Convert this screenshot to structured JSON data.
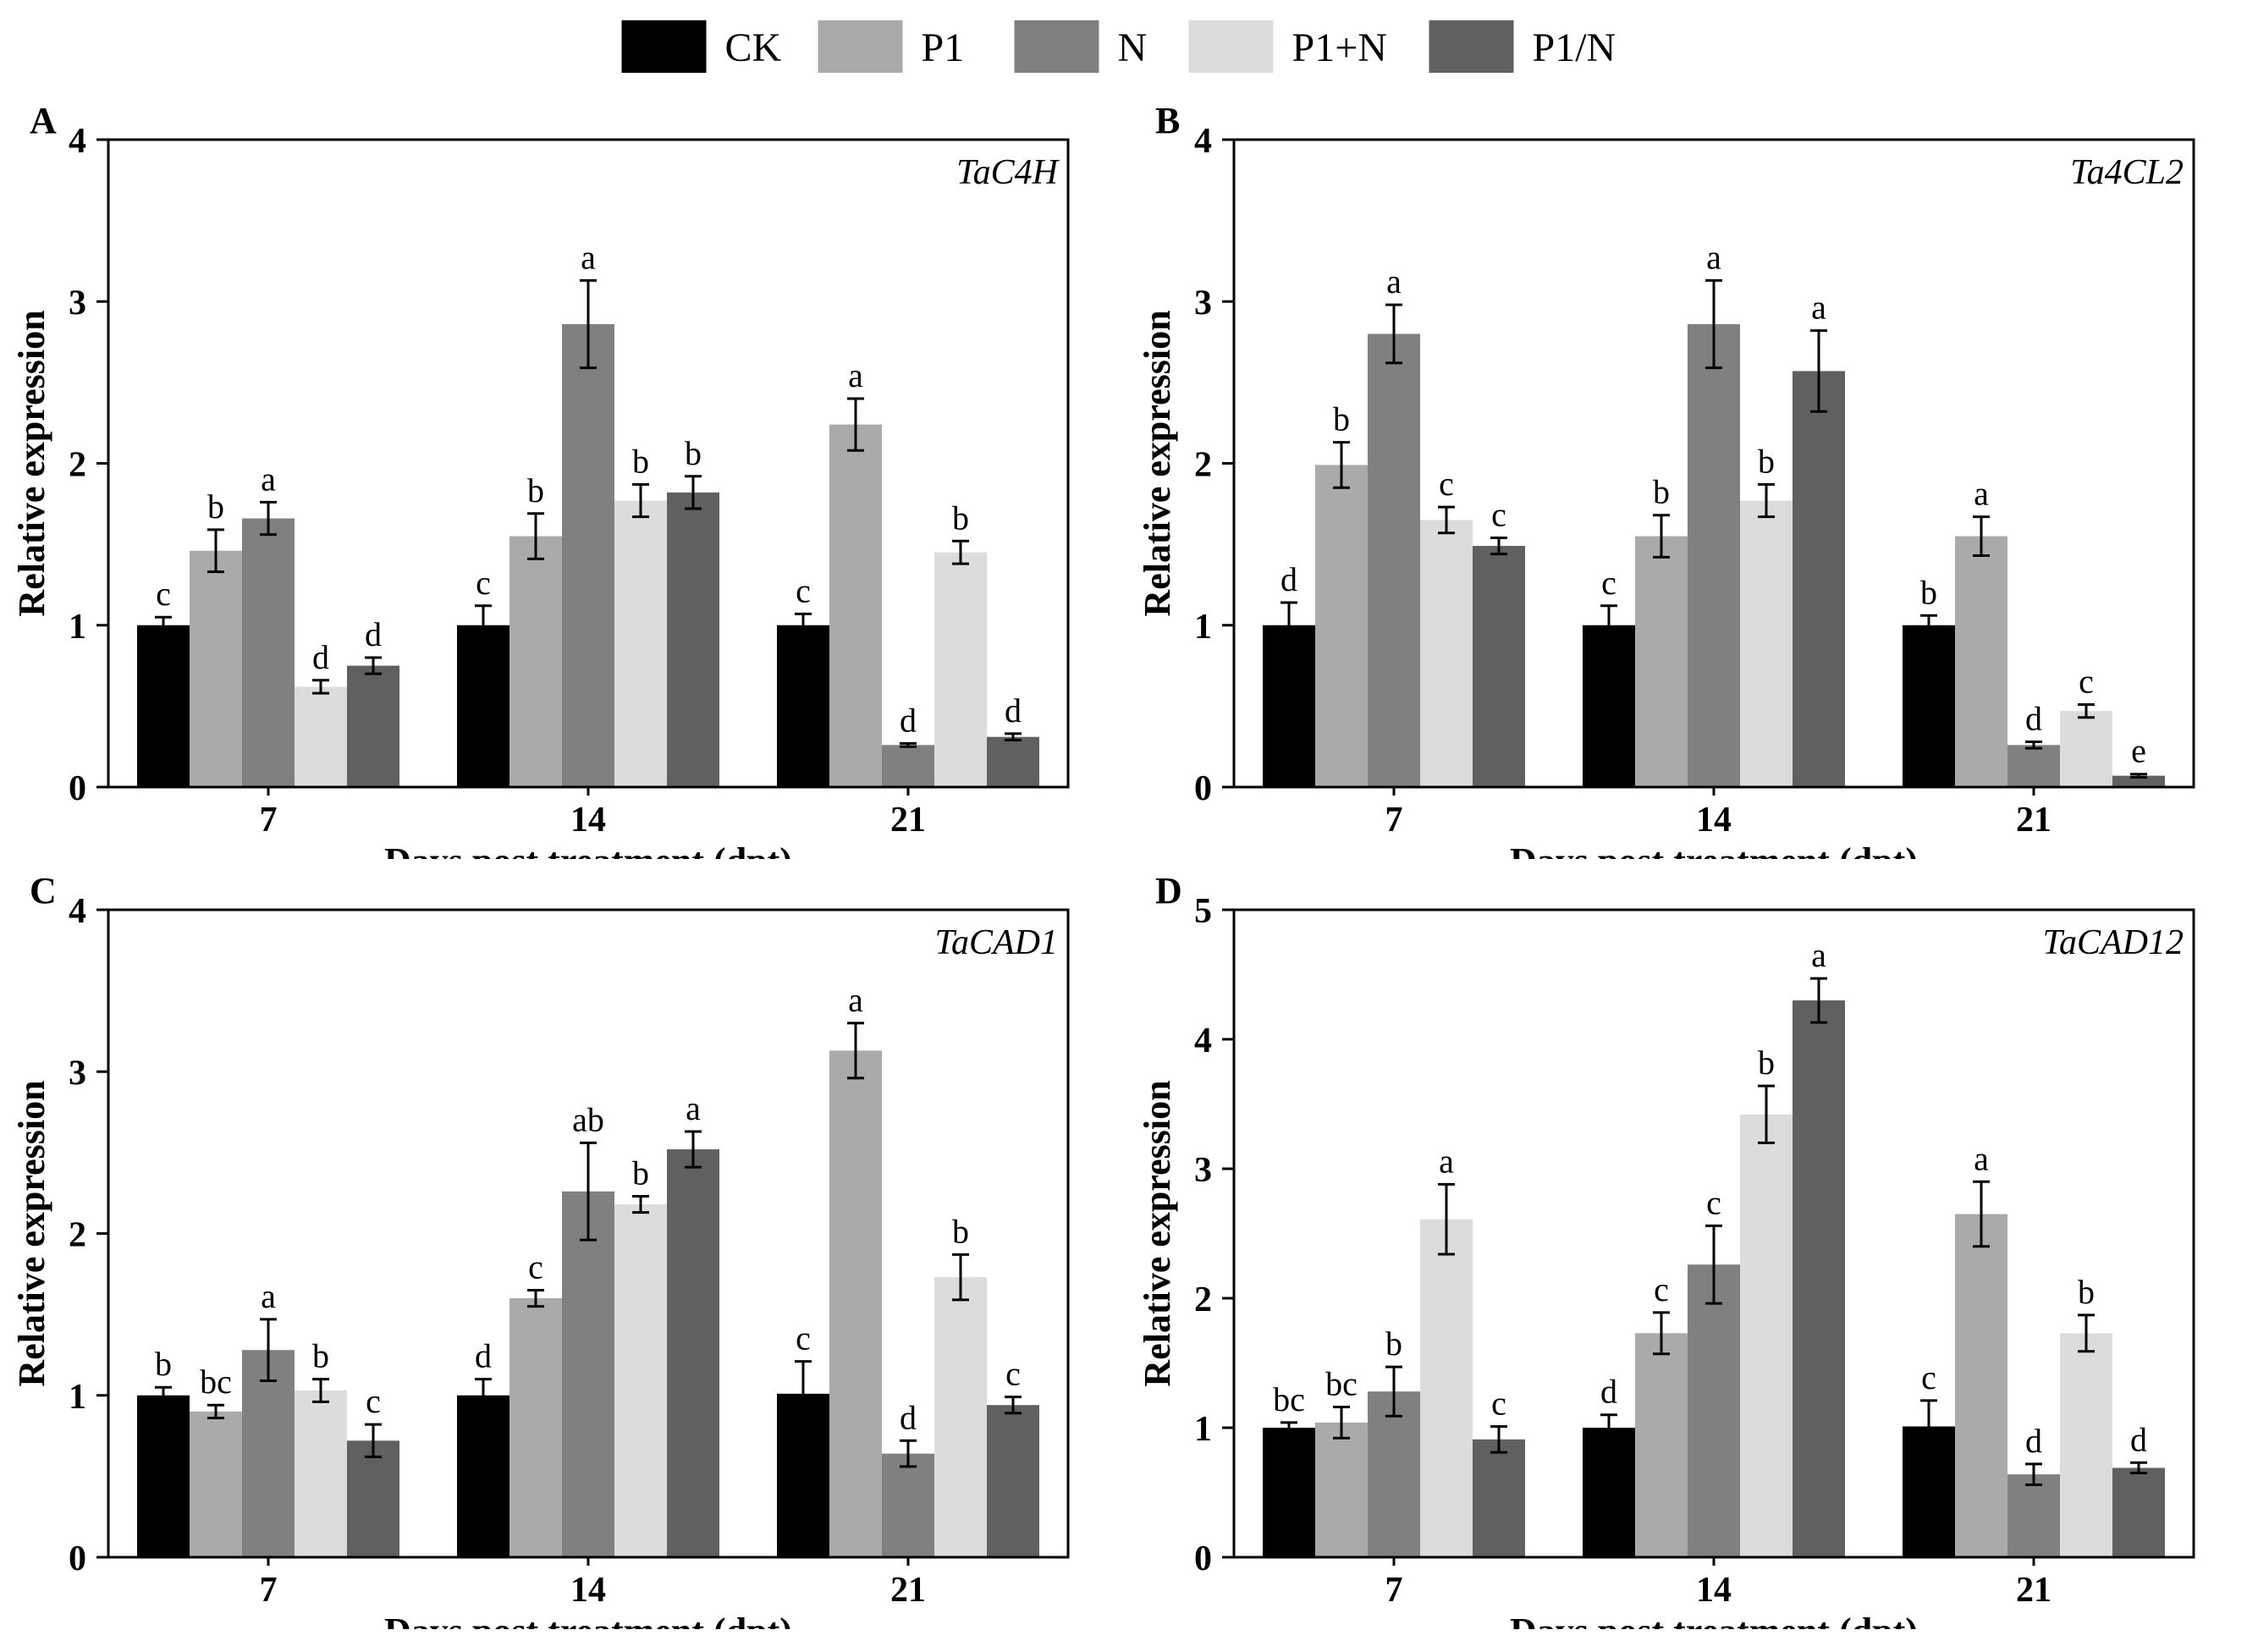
{
  "legend": [
    {
      "name": "CK",
      "color": "#000000"
    },
    {
      "name": "P1",
      "color": "#aaaaaa"
    },
    {
      "name": "N",
      "color": "#808080"
    },
    {
      "name": "P1+N",
      "color": "#dcdcdc"
    },
    {
      "name": "P1/N",
      "color": "#606060"
    }
  ],
  "chart_data": [
    {
      "type": "bar",
      "panel": "A",
      "title": "TaC4H",
      "xlabel": "Days post treatment (dpt)",
      "ylabel": "Relative expression",
      "ylim": [
        0,
        4
      ],
      "yticks": [
        0,
        1,
        2,
        3,
        4
      ],
      "categories": [
        "7",
        "14",
        "21"
      ],
      "series": [
        {
          "name": "CK",
          "values": [
            1.0,
            1.0,
            1.0
          ],
          "errors": [
            0.05,
            0.12,
            0.07
          ],
          "letters": [
            "c",
            "c",
            "c"
          ]
        },
        {
          "name": "P1",
          "values": [
            1.46,
            1.55,
            2.24
          ],
          "errors": [
            0.13,
            0.14,
            0.16
          ],
          "letters": [
            "b",
            "b",
            "a"
          ]
        },
        {
          "name": "N",
          "values": [
            1.66,
            2.86,
            0.26
          ],
          "errors": [
            0.1,
            0.27,
            0.01
          ],
          "letters": [
            "a",
            "a",
            "d"
          ]
        },
        {
          "name": "P1+N",
          "values": [
            0.62,
            1.77,
            1.45
          ],
          "errors": [
            0.04,
            0.1,
            0.07
          ],
          "letters": [
            "d",
            "b",
            "b"
          ]
        },
        {
          "name": "P1/N",
          "values": [
            0.75,
            1.82,
            0.31
          ],
          "errors": [
            0.05,
            0.1,
            0.02
          ],
          "letters": [
            "d",
            "b",
            "d"
          ]
        }
      ]
    },
    {
      "type": "bar",
      "panel": "B",
      "title": "Ta4CL2",
      "xlabel": "Days post treatment (dpt)",
      "ylabel": "Relative expression",
      "ylim": [
        0,
        4
      ],
      "yticks": [
        0,
        1,
        2,
        3,
        4
      ],
      "categories": [
        "7",
        "14",
        "21"
      ],
      "series": [
        {
          "name": "CK",
          "values": [
            1.0,
            1.0,
            1.0
          ],
          "errors": [
            0.14,
            0.12,
            0.06
          ],
          "letters": [
            "d",
            "c",
            "b"
          ]
        },
        {
          "name": "P1",
          "values": [
            1.99,
            1.55,
            1.55
          ],
          "errors": [
            0.14,
            0.13,
            0.12
          ],
          "letters": [
            "b",
            "b",
            "a"
          ]
        },
        {
          "name": "N",
          "values": [
            2.8,
            2.86,
            0.26
          ],
          "errors": [
            0.18,
            0.27,
            0.02
          ],
          "letters": [
            "a",
            "a",
            "d"
          ]
        },
        {
          "name": "P1+N",
          "values": [
            1.65,
            1.77,
            0.47
          ],
          "errors": [
            0.08,
            0.1,
            0.04
          ],
          "letters": [
            "c",
            "b",
            "c"
          ]
        },
        {
          "name": "P1/N",
          "values": [
            1.49,
            2.57,
            0.07
          ],
          "errors": [
            0.05,
            0.25,
            0.01
          ],
          "letters": [
            "c",
            "a",
            "e"
          ]
        }
      ]
    },
    {
      "type": "bar",
      "panel": "C",
      "title": "TaCAD1",
      "xlabel": "Days post treatment (dpt)",
      "ylabel": "Relative expression",
      "ylim": [
        0,
        4
      ],
      "yticks": [
        0,
        1,
        2,
        3,
        4
      ],
      "categories": [
        "7",
        "14",
        "21"
      ],
      "series": [
        {
          "name": "CK",
          "values": [
            1.0,
            1.0,
            1.01
          ],
          "errors": [
            0.05,
            0.1,
            0.2
          ],
          "letters": [
            "b",
            "d",
            "c"
          ]
        },
        {
          "name": "P1",
          "values": [
            0.9,
            1.6,
            3.13
          ],
          "errors": [
            0.04,
            0.05,
            0.17
          ],
          "letters": [
            "bc",
            "c",
            "a"
          ]
        },
        {
          "name": "N",
          "values": [
            1.28,
            2.26,
            0.64
          ],
          "errors": [
            0.19,
            0.3,
            0.08
          ],
          "letters": [
            "a",
            "ab",
            "d"
          ]
        },
        {
          "name": "P1+N",
          "values": [
            1.03,
            2.18,
            1.73
          ],
          "errors": [
            0.07,
            0.05,
            0.14
          ],
          "letters": [
            "b",
            "b",
            "b"
          ]
        },
        {
          "name": "P1/N",
          "values": [
            0.72,
            2.52,
            0.94
          ],
          "errors": [
            0.1,
            0.11,
            0.05
          ],
          "letters": [
            "c",
            "a",
            "c"
          ]
        }
      ]
    },
    {
      "type": "bar",
      "panel": "D",
      "title": "TaCAD12",
      "xlabel": "Days post treatment (dpt)",
      "ylabel": "Relative expression",
      "ylim": [
        0,
        5
      ],
      "yticks": [
        0,
        1,
        2,
        3,
        4,
        5
      ],
      "categories": [
        "7",
        "14",
        "21"
      ],
      "series": [
        {
          "name": "CK",
          "values": [
            1.0,
            1.0,
            1.01
          ],
          "errors": [
            0.04,
            0.1,
            0.2
          ],
          "letters": [
            "bc",
            "d",
            "c"
          ]
        },
        {
          "name": "P1",
          "values": [
            1.04,
            1.73,
            2.65
          ],
          "errors": [
            0.12,
            0.16,
            0.25
          ],
          "letters": [
            "bc",
            "c",
            "a"
          ]
        },
        {
          "name": "N",
          "values": [
            1.28,
            2.26,
            0.64
          ],
          "errors": [
            0.19,
            0.3,
            0.08
          ],
          "letters": [
            "b",
            "c",
            "d"
          ]
        },
        {
          "name": "P1+N",
          "values": [
            2.61,
            3.42,
            1.73
          ],
          "errors": [
            0.27,
            0.22,
            0.14
          ],
          "letters": [
            "a",
            "b",
            "b"
          ]
        },
        {
          "name": "P1/N",
          "values": [
            0.91,
            4.3,
            0.69
          ],
          "errors": [
            0.1,
            0.17,
            0.04
          ],
          "letters": [
            "c",
            "a",
            "d"
          ]
        }
      ]
    }
  ]
}
